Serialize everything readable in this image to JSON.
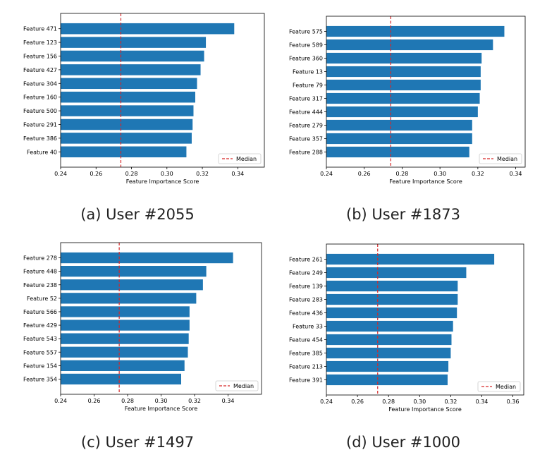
{
  "chart_data": [
    {
      "type": "bar",
      "orientation": "horizontal",
      "caption": "(a) User #2055",
      "xlabel": "Feature Importance Score",
      "xlim": [
        0.24,
        0.355
      ],
      "xticks": [
        "0.24",
        "0.26",
        "0.28",
        "0.30",
        "0.32",
        "0.34"
      ],
      "categories": [
        "Feature 471",
        "Feature 123",
        "Feature 156",
        "Feature 427",
        "Feature 304",
        "Feature 160",
        "Feature 500",
        "Feature 291",
        "Feature 386",
        "Feature 40"
      ],
      "values": [
        0.338,
        0.322,
        0.321,
        0.319,
        0.317,
        0.316,
        0.315,
        0.3145,
        0.314,
        0.311
      ],
      "median": 0.274,
      "legend": "Median",
      "legend_position": "lower-right",
      "bar_color": "#1f77b4",
      "median_color": "#d62728"
    },
    {
      "type": "bar",
      "orientation": "horizontal",
      "caption": "(b) User #1873",
      "xlabel": "Feature Importance Score",
      "xlim": [
        0.24,
        0.345
      ],
      "xticks": [
        "0.24",
        "0.26",
        "0.28",
        "0.30",
        "0.32",
        "0.34"
      ],
      "categories": [
        "Feature 575",
        "Feature 589",
        "Feature 360",
        "Feature 13",
        "Feature 79",
        "Feature 317",
        "Feature 444",
        "Feature 279",
        "Feature 357",
        "Feature 288"
      ],
      "values": [
        0.334,
        0.328,
        0.322,
        0.3215,
        0.3215,
        0.321,
        0.32,
        0.317,
        0.317,
        0.3155
      ],
      "median": 0.274,
      "legend": "Median",
      "legend_position": "lower-right",
      "bar_color": "#1f77b4",
      "median_color": "#d62728"
    },
    {
      "type": "bar",
      "orientation": "horizontal",
      "caption": "(c) User #1497",
      "xlabel": "Feature Importance Score",
      "xlim": [
        0.24,
        0.36
      ],
      "xticks": [
        "0.24",
        "0.26",
        "0.28",
        "0.30",
        "0.32",
        "0.34"
      ],
      "categories": [
        "Feature 278",
        "Feature 448",
        "Feature 238",
        "Feature 52",
        "Feature 566",
        "Feature 429",
        "Feature 543",
        "Feature 557",
        "Feature 154",
        "Feature 354"
      ],
      "values": [
        0.343,
        0.327,
        0.325,
        0.321,
        0.317,
        0.317,
        0.3165,
        0.316,
        0.314,
        0.312
      ],
      "median": 0.275,
      "legend": "Median",
      "legend_position": "lower-right",
      "bar_color": "#1f77b4",
      "median_color": "#d62728"
    },
    {
      "type": "bar",
      "orientation": "horizontal",
      "caption": "(d) User #1000",
      "xlabel": "Feature Importance Score",
      "xlim": [
        0.24,
        0.367
      ],
      "xticks": [
        "0.24",
        "0.26",
        "0.28",
        "0.30",
        "0.32",
        "0.34",
        "0.36"
      ],
      "categories": [
        "Feature 261",
        "Feature 249",
        "Feature 139",
        "Feature 283",
        "Feature 436",
        "Feature 33",
        "Feature 454",
        "Feature 385",
        "Feature 213",
        "Feature 391"
      ],
      "values": [
        0.348,
        0.33,
        0.3245,
        0.3245,
        0.324,
        0.3215,
        0.3205,
        0.32,
        0.3185,
        0.318
      ],
      "median": 0.273,
      "legend": "Median",
      "legend_position": "lower-right",
      "bar_color": "#1f77b4",
      "median_color": "#d62728"
    }
  ]
}
